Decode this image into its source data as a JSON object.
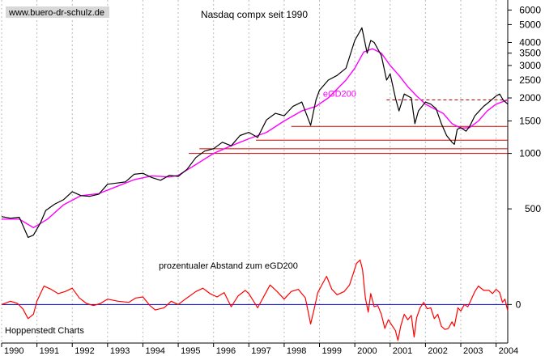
{
  "site_label": "www.buero-dr-schulz.de",
  "source_label": "Hoppenstedt Charts",
  "chart_data": [
    {
      "type": "line",
      "title": "Nasdaq compx seit 1990",
      "yscale": "log",
      "ylim": [
        290,
        6800
      ],
      "xlim": [
        1990,
        2004.33
      ],
      "yticks": [
        6000,
        5000,
        4000,
        3500,
        3000,
        2500,
        2000,
        1500,
        1000,
        500
      ],
      "xticks": [
        "1990",
        "1991",
        "1992",
        "1993",
        "1994",
        "1995",
        "1996",
        "1997",
        "1998",
        "1999",
        "2000",
        "2001",
        "2002",
        "2003",
        "2004"
      ],
      "series": [
        {
          "name": "Nasdaq compx",
          "color": "#000000",
          "points": [
            [
              1990.0,
              454
            ],
            [
              1990.25,
              445
            ],
            [
              1990.5,
              450
            ],
            [
              1990.75,
              350
            ],
            [
              1990.9,
              360
            ],
            [
              1991.1,
              420
            ],
            [
              1991.25,
              490
            ],
            [
              1991.5,
              530
            ],
            [
              1991.75,
              560
            ],
            [
              1992.0,
              620
            ],
            [
              1992.25,
              590
            ],
            [
              1992.5,
              585
            ],
            [
              1992.75,
              600
            ],
            [
              1993.0,
              680
            ],
            [
              1993.25,
              690
            ],
            [
              1993.5,
              700
            ],
            [
              1993.75,
              770
            ],
            [
              1994.0,
              780
            ],
            [
              1994.25,
              740
            ],
            [
              1994.5,
              715
            ],
            [
              1994.75,
              760
            ],
            [
              1995.0,
              750
            ],
            [
              1995.25,
              820
            ],
            [
              1995.5,
              950
            ],
            [
              1995.75,
              1030
            ],
            [
              1996.0,
              1060
            ],
            [
              1996.25,
              1150
            ],
            [
              1996.5,
              1100
            ],
            [
              1996.75,
              1250
            ],
            [
              1997.0,
              1300
            ],
            [
              1997.25,
              1220
            ],
            [
              1997.5,
              1520
            ],
            [
              1997.75,
              1650
            ],
            [
              1998.0,
              1600
            ],
            [
              1998.25,
              1800
            ],
            [
              1998.5,
              1900
            ],
            [
              1998.75,
              1420
            ],
            [
              1998.9,
              1950
            ],
            [
              1999.0,
              2200
            ],
            [
              1999.25,
              2500
            ],
            [
              1999.5,
              2650
            ],
            [
              1999.75,
              2900
            ],
            [
              2000.0,
              4100
            ],
            [
              2000.2,
              4800
            ],
            [
              2000.35,
              3500
            ],
            [
              2000.45,
              4100
            ],
            [
              2000.55,
              4000
            ],
            [
              2000.75,
              3400
            ],
            [
              2000.9,
              2500
            ],
            [
              2001.0,
              2700
            ],
            [
              2001.15,
              2000
            ],
            [
              2001.25,
              1700
            ],
            [
              2001.4,
              2100
            ],
            [
              2001.6,
              2000
            ],
            [
              2001.7,
              1450
            ],
            [
              2001.8,
              1700
            ],
            [
              2002.0,
              1900
            ],
            [
              2002.15,
              1850
            ],
            [
              2002.3,
              1750
            ],
            [
              2002.45,
              1450
            ],
            [
              2002.6,
              1250
            ],
            [
              2002.75,
              1150
            ],
            [
              2002.82,
              1120
            ],
            [
              2002.9,
              1350
            ],
            [
              2003.0,
              1380
            ],
            [
              2003.15,
              1320
            ],
            [
              2003.25,
              1400
            ],
            [
              2003.4,
              1600
            ],
            [
              2003.5,
              1680
            ],
            [
              2003.65,
              1800
            ],
            [
              2003.8,
              1900
            ],
            [
              2004.0,
              2050
            ],
            [
              2004.1,
              2100
            ],
            [
              2004.2,
              1950
            ],
            [
              2004.33,
              1850
            ]
          ]
        },
        {
          "name": "eGD200",
          "color": "#ff00ff",
          "points": [
            [
              1990.0,
              440
            ],
            [
              1990.5,
              440
            ],
            [
              1990.9,
              395
            ],
            [
              1991.3,
              440
            ],
            [
              1991.75,
              525
            ],
            [
              1992.25,
              590
            ],
            [
              1992.75,
              605
            ],
            [
              1993.25,
              660
            ],
            [
              1993.75,
              720
            ],
            [
              1994.25,
              755
            ],
            [
              1994.75,
              745
            ],
            [
              1995.0,
              760
            ],
            [
              1995.5,
              870
            ],
            [
              1996.0,
              1000
            ],
            [
              1996.5,
              1100
            ],
            [
              1997.0,
              1200
            ],
            [
              1997.5,
              1300
            ],
            [
              1998.0,
              1500
            ],
            [
              1998.5,
              1700
            ],
            [
              1998.9,
              1800
            ],
            [
              1999.25,
              2000
            ],
            [
              1999.75,
              2500
            ],
            [
              2000.0,
              2900
            ],
            [
              2000.25,
              3550
            ],
            [
              2000.5,
              3700
            ],
            [
              2000.75,
              3500
            ],
            [
              2001.0,
              3000
            ],
            [
              2001.25,
              2650
            ],
            [
              2001.5,
              2300
            ],
            [
              2001.75,
              2050
            ],
            [
              2002.0,
              1850
            ],
            [
              2002.5,
              1650
            ],
            [
              2002.75,
              1450
            ],
            [
              2003.0,
              1370
            ],
            [
              2003.25,
              1380
            ],
            [
              2003.5,
              1500
            ],
            [
              2003.75,
              1700
            ],
            [
              2004.0,
              1850
            ],
            [
              2004.33,
              1950
            ]
          ]
        }
      ],
      "annotations": [
        {
          "text": "eGD200",
          "color": "#ff00ff",
          "x": 1999.1,
          "y": 2030
        }
      ],
      "hlines": [
        {
          "y": 1950,
          "from": 2000.9,
          "to": 2004.33,
          "style": "dashed",
          "color": "#cc0000"
        },
        {
          "y": 1400,
          "from": 1998.2,
          "to": 2004.33,
          "style": "solid",
          "color": "#cc0000"
        },
        {
          "y": 1180,
          "from": 1997.2,
          "to": 2004.33,
          "style": "solid",
          "color": "#cc0000"
        },
        {
          "y": 1060,
          "from": 1995.6,
          "to": 2004.33,
          "style": "solid",
          "color": "#cc0000"
        },
        {
          "y": 1000,
          "from": 1995.3,
          "to": 2004.33,
          "style": "solid",
          "color": "#cc0000"
        }
      ]
    },
    {
      "type": "line",
      "title": "prozentualer Abstand zum eGD200",
      "ylim": [
        -34,
        42
      ],
      "xlim": [
        1990,
        2004.33
      ],
      "yticks": [
        0
      ],
      "zero_line_color": "#0000cc",
      "series": [
        {
          "name": "Abstand zum eGD200 (%)",
          "color": "#ff0000",
          "points": [
            [
              1990.0,
              0
            ],
            [
              1990.25,
              3
            ],
            [
              1990.45,
              1
            ],
            [
              1990.6,
              -4
            ],
            [
              1990.75,
              -13
            ],
            [
              1990.9,
              -9
            ],
            [
              1991.0,
              3
            ],
            [
              1991.2,
              17
            ],
            [
              1991.4,
              14
            ],
            [
              1991.6,
              10
            ],
            [
              1991.8,
              12
            ],
            [
              1992.0,
              15
            ],
            [
              1992.2,
              6
            ],
            [
              1992.4,
              1
            ],
            [
              1992.6,
              -1
            ],
            [
              1992.8,
              1
            ],
            [
              1993.0,
              5
            ],
            [
              1993.3,
              3
            ],
            [
              1993.6,
              2
            ],
            [
              1993.8,
              6
            ],
            [
              1994.0,
              7
            ],
            [
              1994.2,
              -1
            ],
            [
              1994.35,
              -5
            ],
            [
              1994.6,
              -3
            ],
            [
              1994.8,
              3
            ],
            [
              1995.0,
              0
            ],
            [
              1995.2,
              5
            ],
            [
              1995.5,
              12
            ],
            [
              1995.7,
              15
            ],
            [
              1995.9,
              10
            ],
            [
              1996.1,
              7
            ],
            [
              1996.3,
              11
            ],
            [
              1996.5,
              -2
            ],
            [
              1996.7,
              8
            ],
            [
              1996.9,
              13
            ],
            [
              1997.0,
              10
            ],
            [
              1997.25,
              -3
            ],
            [
              1997.45,
              9
            ],
            [
              1997.6,
              18
            ],
            [
              1997.8,
              12
            ],
            [
              1998.0,
              5
            ],
            [
              1998.2,
              12
            ],
            [
              1998.4,
              14
            ],
            [
              1998.6,
              6
            ],
            [
              1998.75,
              -18
            ],
            [
              1998.85,
              -4
            ],
            [
              1998.95,
              11
            ],
            [
              1999.1,
              20
            ],
            [
              1999.2,
              26
            ],
            [
              1999.35,
              14
            ],
            [
              1999.5,
              9
            ],
            [
              1999.7,
              12
            ],
            [
              1999.85,
              18
            ],
            [
              1999.95,
              28
            ],
            [
              2000.05,
              38
            ],
            [
              2000.15,
              41
            ],
            [
              2000.22,
              32
            ],
            [
              2000.3,
              6
            ],
            [
              2000.38,
              -7
            ],
            [
              2000.45,
              10
            ],
            [
              2000.55,
              -2
            ],
            [
              2000.65,
              -1
            ],
            [
              2000.75,
              -9
            ],
            [
              2000.85,
              -22
            ],
            [
              2000.95,
              -14
            ],
            [
              2001.05,
              -19
            ],
            [
              2001.15,
              -24
            ],
            [
              2001.22,
              -33
            ],
            [
              2001.3,
              -20
            ],
            [
              2001.4,
              -9
            ],
            [
              2001.5,
              -14
            ],
            [
              2001.6,
              -10
            ],
            [
              2001.68,
              -30
            ],
            [
              2001.75,
              -12
            ],
            [
              2001.85,
              -3
            ],
            [
              2001.95,
              2
            ],
            [
              2002.05,
              -4
            ],
            [
              2002.15,
              -3
            ],
            [
              2002.25,
              -13
            ],
            [
              2002.35,
              -9
            ],
            [
              2002.45,
              -20
            ],
            [
              2002.55,
              -23
            ],
            [
              2002.65,
              -22
            ],
            [
              2002.75,
              -16
            ],
            [
              2002.82,
              -20
            ],
            [
              2002.92,
              -3
            ],
            [
              2003.0,
              -6
            ],
            [
              2003.1,
              0
            ],
            [
              2003.2,
              -2
            ],
            [
              2003.3,
              5
            ],
            [
              2003.4,
              12
            ],
            [
              2003.5,
              17
            ],
            [
              2003.65,
              13
            ],
            [
              2003.8,
              13
            ],
            [
              2003.9,
              10
            ],
            [
              2004.0,
              14
            ],
            [
              2004.1,
              11
            ],
            [
              2004.18,
              2
            ],
            [
              2004.25,
              5
            ],
            [
              2004.33,
              -6
            ]
          ]
        }
      ]
    }
  ]
}
